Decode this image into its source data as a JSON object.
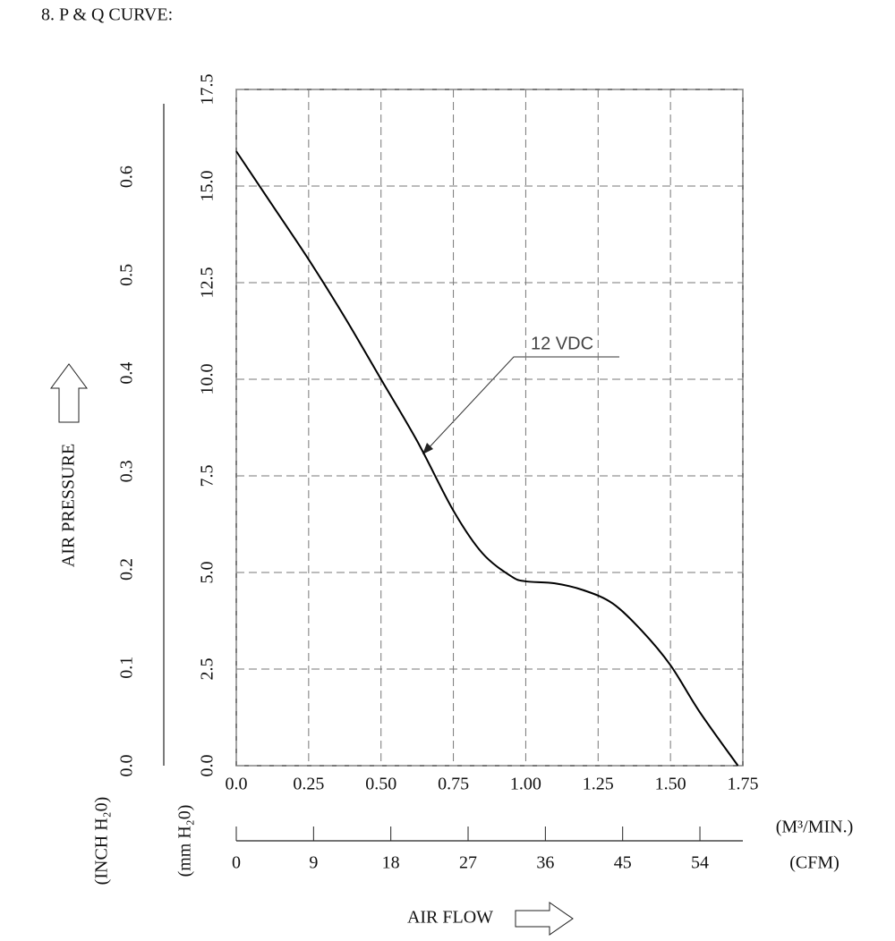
{
  "chart_data": {
    "type": "line",
    "title": "8. P & Q CURVE:",
    "x_label": "AIR FLOW",
    "y_label": "AIR PRESSURE",
    "x": [
      0,
      0.125,
      0.25,
      0.375,
      0.5,
      0.625,
      0.75,
      0.85,
      0.95,
      1.0,
      1.1,
      1.2,
      1.3,
      1.4,
      1.5,
      1.6,
      1.733
    ],
    "series": [
      {
        "name": "12 VDC",
        "color": "#000000",
        "values": [
          15.9,
          14.5,
          13.1,
          11.6,
          10.0,
          8.4,
          6.6,
          5.5,
          4.9,
          4.77,
          4.72,
          4.54,
          4.2,
          3.5,
          2.6,
          1.4,
          0
        ]
      }
    ],
    "xlim": [
      0,
      1.75
    ],
    "xticks": [
      {
        "value": 0,
        "label": "0.0"
      },
      0.25,
      {
        "value": 0.5,
        "label": "0.50"
      },
      0.75,
      {
        "value": 1,
        "label": "1.00"
      },
      1.25,
      {
        "value": 1.5,
        "label": "1.50"
      },
      1.75
    ],
    "x_unit": "(M³/MIN.)",
    "ylim": [
      0,
      17.5
    ],
    "yticks": [
      {
        "value": 0,
        "label": "0.0"
      },
      2.5,
      {
        "value": 5,
        "label": "5.0"
      },
      7.5,
      {
        "value": 10,
        "label": "10.0"
      },
      12.5,
      {
        "value": 15,
        "label": "15.0"
      },
      17.5
    ],
    "y_unit": "(mm H₂0)",
    "y2lim": [
      0,
      0.689
    ],
    "y2ticks": [
      {
        "value": 0,
        "label": "0.0"
      },
      0.1,
      0.2,
      0.3,
      0.4,
      0.5,
      0.6
    ],
    "y2_unit": "(INCH H₂0)",
    "x2lim": [
      0,
      59
    ],
    "x2ticks": [
      0,
      9,
      18,
      27,
      36,
      45,
      54
    ],
    "x2_unit": "(CFM)",
    "grid": true
  }
}
